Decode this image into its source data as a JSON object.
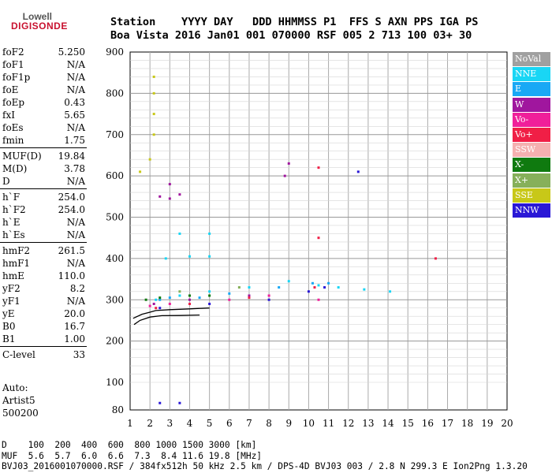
{
  "logo": {
    "top": "Lowell",
    "bottom": "DIGISONDE"
  },
  "header": {
    "line1": "Station    YYYY DAY   DDD HHMMSS P1  FFS S AXN PPS IGA PS",
    "line2": "Boa Vista 2016 Jan01 001 070000 RSF 005 2 713 100 03+ 30"
  },
  "params": [
    {
      "label": "foF2",
      "value": "5.250"
    },
    {
      "label": "foF1",
      "value": "N/A"
    },
    {
      "label": "foF1p",
      "value": "N/A"
    },
    {
      "label": "foE",
      "value": "N/A"
    },
    {
      "label": "foEp",
      "value": "0.43"
    },
    {
      "label": "fxI",
      "value": "5.65"
    },
    {
      "label": "foEs",
      "value": "N/A"
    },
    {
      "label": "fmin",
      "value": "1.75"
    },
    {
      "label": "MUF(D)",
      "value": "19.84"
    },
    {
      "label": "M(D)",
      "value": "3.78"
    },
    {
      "label": "D",
      "value": "N/A"
    },
    {
      "label": "h`F",
      "value": "254.0"
    },
    {
      "label": "h`F2",
      "value": "254.0"
    },
    {
      "label": "h`E",
      "value": "N/A"
    },
    {
      "label": "h`Es",
      "value": "N/A"
    },
    {
      "label": "hmF2",
      "value": "261.5"
    },
    {
      "label": "hmF1",
      "value": "N/A"
    },
    {
      "label": "hmE",
      "value": "110.0"
    },
    {
      "label": "yF2",
      "value": "8.2"
    },
    {
      "label": "yF1",
      "value": "N/A"
    },
    {
      "label": "yE",
      "value": "20.0"
    },
    {
      "label": "B0",
      "value": "16.7"
    },
    {
      "label": "B1",
      "value": "1.00"
    },
    {
      "label": "C-level",
      "value": "33"
    }
  ],
  "auto": {
    "line1": "Auto:",
    "line2": "Artist5",
    "line3": "500200"
  },
  "footer": {
    "line1": "D    100  200  400  600  800 1000 1500 3000 [km]",
    "line2": "MUF  5.6  5.7  6.0  6.6  7.3  8.4 11.6 19.8 [MHz]",
    "line3": "BVJ03_2016001070000.RSF / 384fx512h 50 kHz 2.5 km / DPS-4D BVJ03 003 / 2.8 N 299.3 E Ion2Png 1.3.20"
  },
  "legend": [
    {
      "label": "NoVal",
      "color": "#a0a0a0"
    },
    {
      "label": "NNE",
      "color": "#19d6f5"
    },
    {
      "label": "E",
      "color": "#19a8f5"
    },
    {
      "label": "W",
      "color": "#a0169e"
    },
    {
      "label": "Vo-",
      "color": "#f01f9a"
    },
    {
      "label": "Vo+",
      "color": "#f01f46"
    },
    {
      "label": "SSW",
      "color": "#f5b0b0"
    },
    {
      "label": "X-",
      "color": "#0f7a0f"
    },
    {
      "label": "X+",
      "color": "#86b05a"
    },
    {
      "label": "SSE",
      "color": "#c8c818"
    },
    {
      "label": "NNW",
      "color": "#2a18d6"
    }
  ],
  "chart_data": {
    "type": "scatter",
    "title": "",
    "xlabel": "",
    "ylabel": "",
    "xlim": [
      1,
      20
    ],
    "ylim": [
      80,
      900
    ],
    "x_ticks": [
      1,
      2,
      3,
      4,
      5,
      6,
      7,
      8,
      9,
      10,
      11,
      12,
      13,
      14,
      15,
      16,
      17,
      18,
      19,
      20
    ],
    "y_ticks": [
      80,
      100,
      200,
      300,
      400,
      500,
      600,
      700,
      800,
      900
    ],
    "grid": true,
    "legend_position": "right",
    "series": [
      {
        "name": "NNE",
        "points": [
          [
            2.3,
            300
          ],
          [
            3.5,
            310
          ],
          [
            5,
            320
          ],
          [
            7,
            330
          ],
          [
            9,
            345
          ],
          [
            10.5,
            335
          ],
          [
            11.5,
            330
          ],
          [
            12.8,
            325
          ],
          [
            14.1,
            320
          ],
          [
            2.8,
            400
          ],
          [
            4,
            405
          ],
          [
            5,
            405
          ],
          [
            3.5,
            460
          ],
          [
            5,
            460
          ]
        ]
      },
      {
        "name": "E",
        "points": [
          [
            3,
            305
          ],
          [
            6,
            315
          ],
          [
            8.5,
            330
          ],
          [
            10.2,
            340
          ],
          [
            11,
            340
          ],
          [
            2.5,
            300
          ],
          [
            4.5,
            305
          ]
        ]
      },
      {
        "name": "W",
        "points": [
          [
            2.5,
            550
          ],
          [
            3,
            545
          ],
          [
            3.5,
            555
          ],
          [
            3,
            580
          ],
          [
            8.8,
            600
          ],
          [
            9,
            630
          ],
          [
            2.2,
            290
          ],
          [
            4,
            300
          ],
          [
            7,
            310
          ]
        ]
      },
      {
        "name": "Vo-",
        "points": [
          [
            2,
            285
          ],
          [
            3,
            290
          ],
          [
            6,
            300
          ],
          [
            8,
            310
          ],
          [
            10.5,
            300
          ]
        ]
      },
      {
        "name": "Vo+",
        "points": [
          [
            2.3,
            280
          ],
          [
            4,
            290
          ],
          [
            7,
            305
          ],
          [
            10.3,
            330
          ],
          [
            10.5,
            450
          ],
          [
            10.5,
            620
          ],
          [
            16.4,
            400
          ]
        ]
      },
      {
        "name": "X-",
        "points": [
          [
            1.8,
            300
          ],
          [
            2.5,
            305
          ],
          [
            4,
            310
          ],
          [
            5,
            310
          ]
        ]
      },
      {
        "name": "X+",
        "points": [
          [
            3.5,
            320
          ],
          [
            6.5,
            330
          ]
        ]
      },
      {
        "name": "SSE",
        "points": [
          [
            2.2,
            700
          ],
          [
            2.2,
            750
          ],
          [
            2.2,
            800
          ],
          [
            2.2,
            840
          ],
          [
            1.5,
            610
          ],
          [
            2.0,
            640
          ]
        ]
      },
      {
        "name": "NNW",
        "points": [
          [
            2.5,
            280
          ],
          [
            5,
            290
          ],
          [
            8,
            300
          ],
          [
            10,
            320
          ],
          [
            10.8,
            330
          ],
          [
            12.5,
            610
          ],
          [
            2.5,
            85
          ],
          [
            3.5,
            85
          ]
        ]
      }
    ],
    "trace_lines": [
      {
        "name": "virtual-height-trace",
        "points": [
          [
            1.15,
            255
          ],
          [
            1.6,
            265
          ],
          [
            2.0,
            270
          ],
          [
            2.3,
            274
          ],
          [
            3.0,
            276
          ],
          [
            4.0,
            278
          ],
          [
            4.5,
            279
          ],
          [
            5.0,
            280
          ]
        ]
      },
      {
        "name": "profile",
        "points": [
          [
            1.2,
            240
          ],
          [
            1.5,
            250
          ],
          [
            2.0,
            258
          ],
          [
            2.6,
            261.5
          ],
          [
            3.5,
            262
          ],
          [
            4.5,
            263
          ]
        ]
      }
    ]
  }
}
